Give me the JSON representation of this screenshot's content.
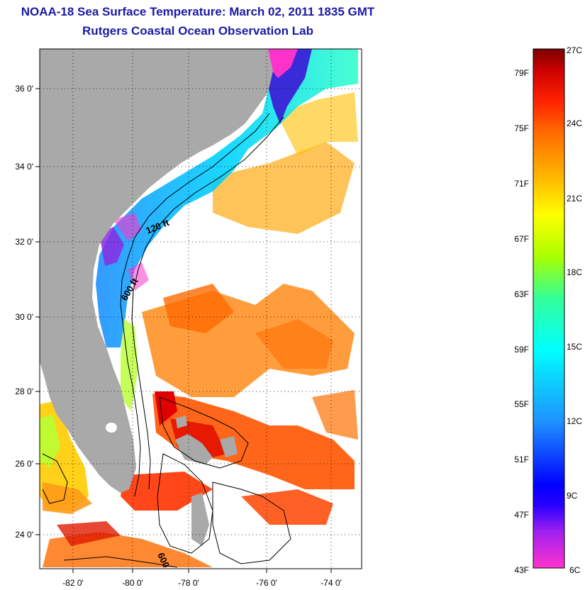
{
  "header": {
    "title": "NOAA-18 Sea Surface Temperature:  March 02, 2011 1835 GMT",
    "subtitle": "Rutgers Coastal Ocean Observation Lab"
  },
  "map": {
    "lon_labels": [
      "-82 0'",
      "-80 0'",
      "-78 0'",
      "-76 0'",
      "-74 0'"
    ],
    "lat_labels": [
      "36 0'",
      "34 0'",
      "32 0'",
      "30 0'",
      "28 0'",
      "26 0'",
      "24 0'"
    ],
    "contour_labels": [
      "120 ft",
      "600 ft",
      "600 ft"
    ],
    "colors": {
      "land": "#a9a9a9",
      "cloud": "#ffffff",
      "contour": "#000000"
    }
  },
  "colorbar": {
    "fahrenheit_labels": [
      "79F",
      "75F",
      "71F",
      "67F",
      "63F",
      "59F",
      "55F",
      "51F",
      "47F",
      "43F"
    ],
    "celsius_labels": [
      "27C",
      "24C",
      "21C",
      "18C",
      "15C",
      "12C",
      "9C",
      "6C"
    ],
    "scale_colors": [
      "#ff33cc",
      "#8a2be2",
      "#0000ff",
      "#0a8cff",
      "#00ffff",
      "#33ff99",
      "#aaff00",
      "#ffff00",
      "#ffb000",
      "#ff6a00",
      "#ff2200",
      "#d40000",
      "#7a0000"
    ]
  }
}
